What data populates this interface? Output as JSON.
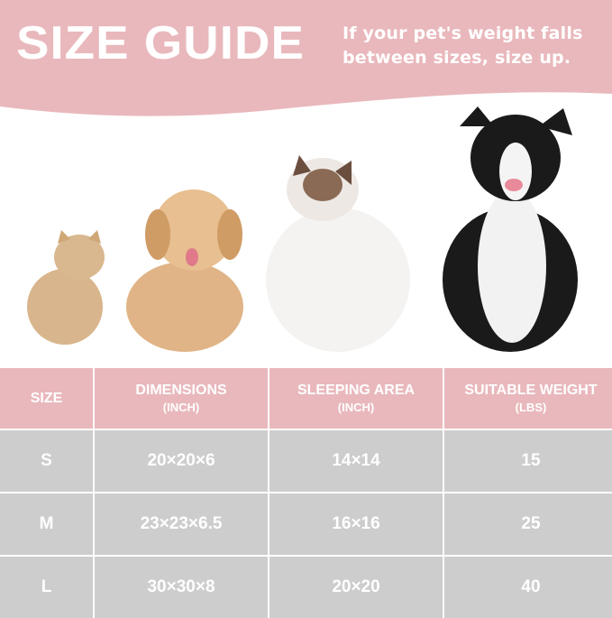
{
  "header": {
    "title": "SIZE GUIDE",
    "note_line1": "If your pet's weight falls",
    "note_line2": "between sizes, size up."
  },
  "colors": {
    "pink": "#e9b8bc",
    "gray": "#cdcdcd",
    "text": "#ffffff"
  },
  "pets": [
    "cat-small",
    "dog-poodle",
    "cat-ragdoll",
    "dog-border-collie"
  ],
  "table": {
    "headers": [
      {
        "label": "SIZE",
        "unit": ""
      },
      {
        "label": "DIMENSIONS",
        "unit": "(INCH)"
      },
      {
        "label": "SLEEPING AREA",
        "unit": "(INCH)"
      },
      {
        "label": "SUITABLE WEIGHT",
        "unit": "(LBS)"
      }
    ],
    "rows": [
      [
        "S",
        "20×20×6",
        "14×14",
        "15"
      ],
      [
        "M",
        "23×23×6.5",
        "16×16",
        "25"
      ],
      [
        "L",
        "30×30×8",
        "20×20",
        "40"
      ]
    ]
  }
}
